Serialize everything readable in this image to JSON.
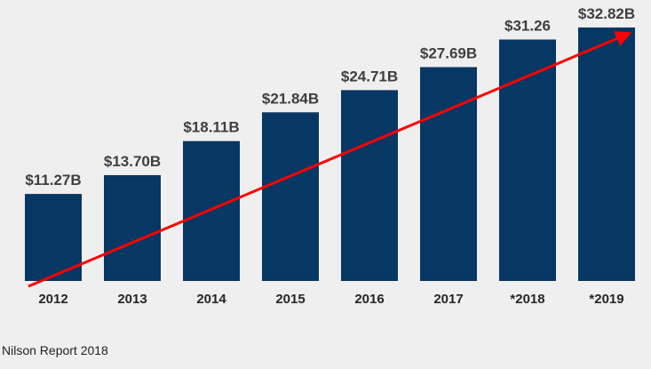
{
  "chart_data": {
    "type": "bar",
    "title": "",
    "xlabel": "",
    "ylabel": "",
    "categories": [
      "2012",
      "2013",
      "2014",
      "2015",
      "2016",
      "2017",
      "*2018",
      "*2019"
    ],
    "values": [
      11.27,
      13.7,
      18.11,
      21.84,
      24.71,
      27.69,
      31.26,
      32.82
    ],
    "data_labels": [
      "$11.27B",
      "$13.70B",
      "$18.11B",
      "$21.84B",
      "$24.71B",
      "$27.69B",
      "$31.26",
      "$32.82B"
    ],
    "units": "billions USD",
    "ylim": [
      0,
      33.5
    ],
    "grid": false,
    "legend": "none",
    "trend_arrow": {
      "from_category": "2012",
      "to_category": "*2019",
      "direction": "up-right"
    },
    "colors": {
      "bar": "#073763",
      "trend_arrow": "#ff0000",
      "background": "#efefef"
    }
  },
  "source": "Nilson Report 2018"
}
